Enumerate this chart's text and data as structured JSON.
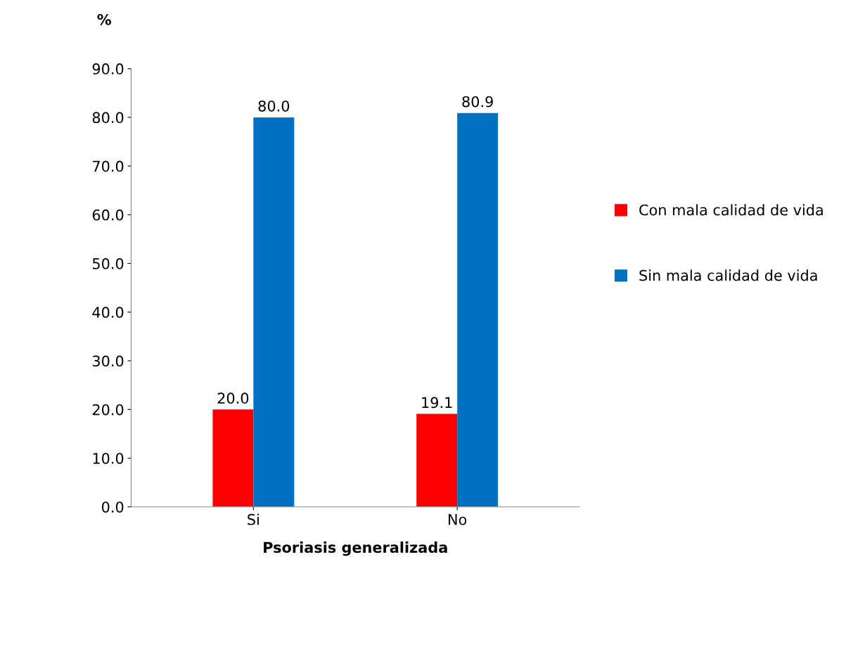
{
  "chart_data": {
    "type": "bar",
    "xlabel": "Psoriasis generalizada",
    "ylabel": "%",
    "categories": [
      "Si",
      "No"
    ],
    "series": [
      {
        "name": "Con mala calidad de vida",
        "color": "#ff0000",
        "values": [
          20.0,
          19.1
        ],
        "value_labels": [
          "20.0",
          "19.1"
        ]
      },
      {
        "name": "Sin mala calidad de vida",
        "color": "#0070c0",
        "values": [
          80.0,
          80.9
        ],
        "value_labels": [
          "80.0",
          "80.9"
        ]
      }
    ],
    "ylim": [
      0,
      90
    ],
    "yticks": [
      {
        "value": 0,
        "label": "0.0"
      },
      {
        "value": 10,
        "label": "10.0"
      },
      {
        "value": 20,
        "label": "20.0"
      },
      {
        "value": 30,
        "label": "30.0"
      },
      {
        "value": 40,
        "label": "40.0"
      },
      {
        "value": 50,
        "label": "50.0"
      },
      {
        "value": 60,
        "label": "60.0"
      },
      {
        "value": 70,
        "label": "70.0"
      },
      {
        "value": 80,
        "label": "80.0"
      },
      {
        "value": 90,
        "label": "90.0"
      }
    ],
    "grid": false,
    "legend": "right"
  }
}
